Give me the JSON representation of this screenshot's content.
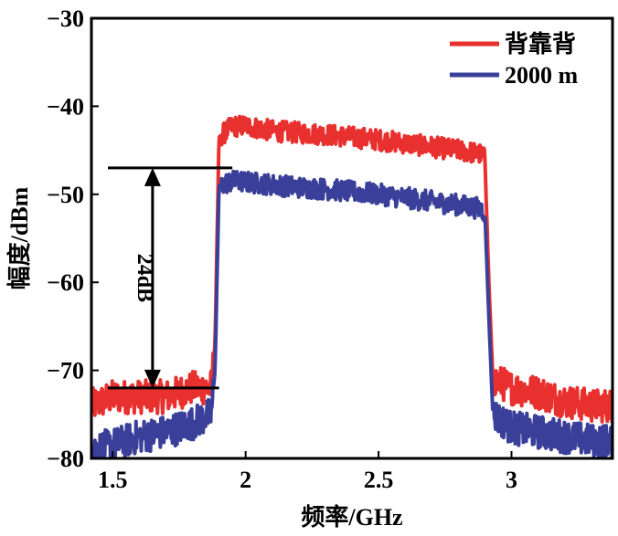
{
  "chart_data": {
    "type": "line",
    "title": "",
    "xlabel": "频率/GHz",
    "ylabel": "幅度/dBm",
    "xlim": [
      1.42,
      3.38
    ],
    "ylim": [
      -80,
      -30
    ],
    "xticks": [
      1.5,
      2,
      2.5,
      3
    ],
    "xtick_labels": [
      "1.5",
      "2",
      "2.5",
      "3"
    ],
    "yticks": [
      -30,
      -40,
      -50,
      -60,
      -70,
      -80
    ],
    "ytick_labels": [
      "−30",
      "−40",
      "−50",
      "−60",
      "−70",
      "−80"
    ],
    "grid": false,
    "legend_position": "top-right",
    "series": [
      {
        "name": "背靠背",
        "color": "#e8312f",
        "x": [
          1.42,
          1.5,
          1.6,
          1.7,
          1.8,
          1.87,
          1.885,
          1.9,
          1.95,
          2.0,
          2.1,
          2.2,
          2.3,
          2.4,
          2.5,
          2.6,
          2.7,
          2.8,
          2.88,
          2.9,
          2.915,
          2.93,
          3.0,
          3.1,
          3.2,
          3.3,
          3.38
        ],
        "values": [
          -74.0,
          -73.0,
          -73.0,
          -73.0,
          -72.0,
          -72.0,
          -67.0,
          -43.5,
          -42.3,
          -42.2,
          -42.8,
          -43.0,
          -43.2,
          -43.5,
          -43.8,
          -44.2,
          -44.6,
          -45.0,
          -45.4,
          -46.0,
          -60.0,
          -71.0,
          -72.0,
          -72.5,
          -73.5,
          -74.0,
          -74.0
        ]
      },
      {
        "name": "2000 m",
        "color": "#3a3f99",
        "x": [
          1.42,
          1.5,
          1.6,
          1.7,
          1.8,
          1.87,
          1.885,
          1.9,
          1.95,
          2.0,
          2.1,
          2.2,
          2.3,
          2.4,
          2.5,
          2.6,
          2.7,
          2.8,
          2.88,
          2.9,
          2.915,
          2.93,
          3.0,
          3.1,
          3.2,
          3.3,
          3.38
        ],
        "values": [
          -79.0,
          -78.5,
          -77.5,
          -77.0,
          -76.0,
          -75.0,
          -70.0,
          -49.0,
          -48.5,
          -48.6,
          -48.9,
          -49.2,
          -49.4,
          -49.7,
          -50.0,
          -50.4,
          -50.8,
          -51.2,
          -51.6,
          -52.0,
          -64.0,
          -75.0,
          -76.5,
          -77.0,
          -77.5,
          -78.0,
          -78.0
        ]
      }
    ],
    "annotations": [
      {
        "text": "24dB",
        "type": "vertical-double-arrow",
        "x": 1.65,
        "y_top": -47.0,
        "y_bottom": -72.0,
        "ref_line_top": [
          1.42,
          1.95
        ],
        "ref_line_bottom": [
          1.42,
          1.9
        ]
      }
    ],
    "noise_amplitude_dB": 1.2,
    "sample_points": 900
  }
}
